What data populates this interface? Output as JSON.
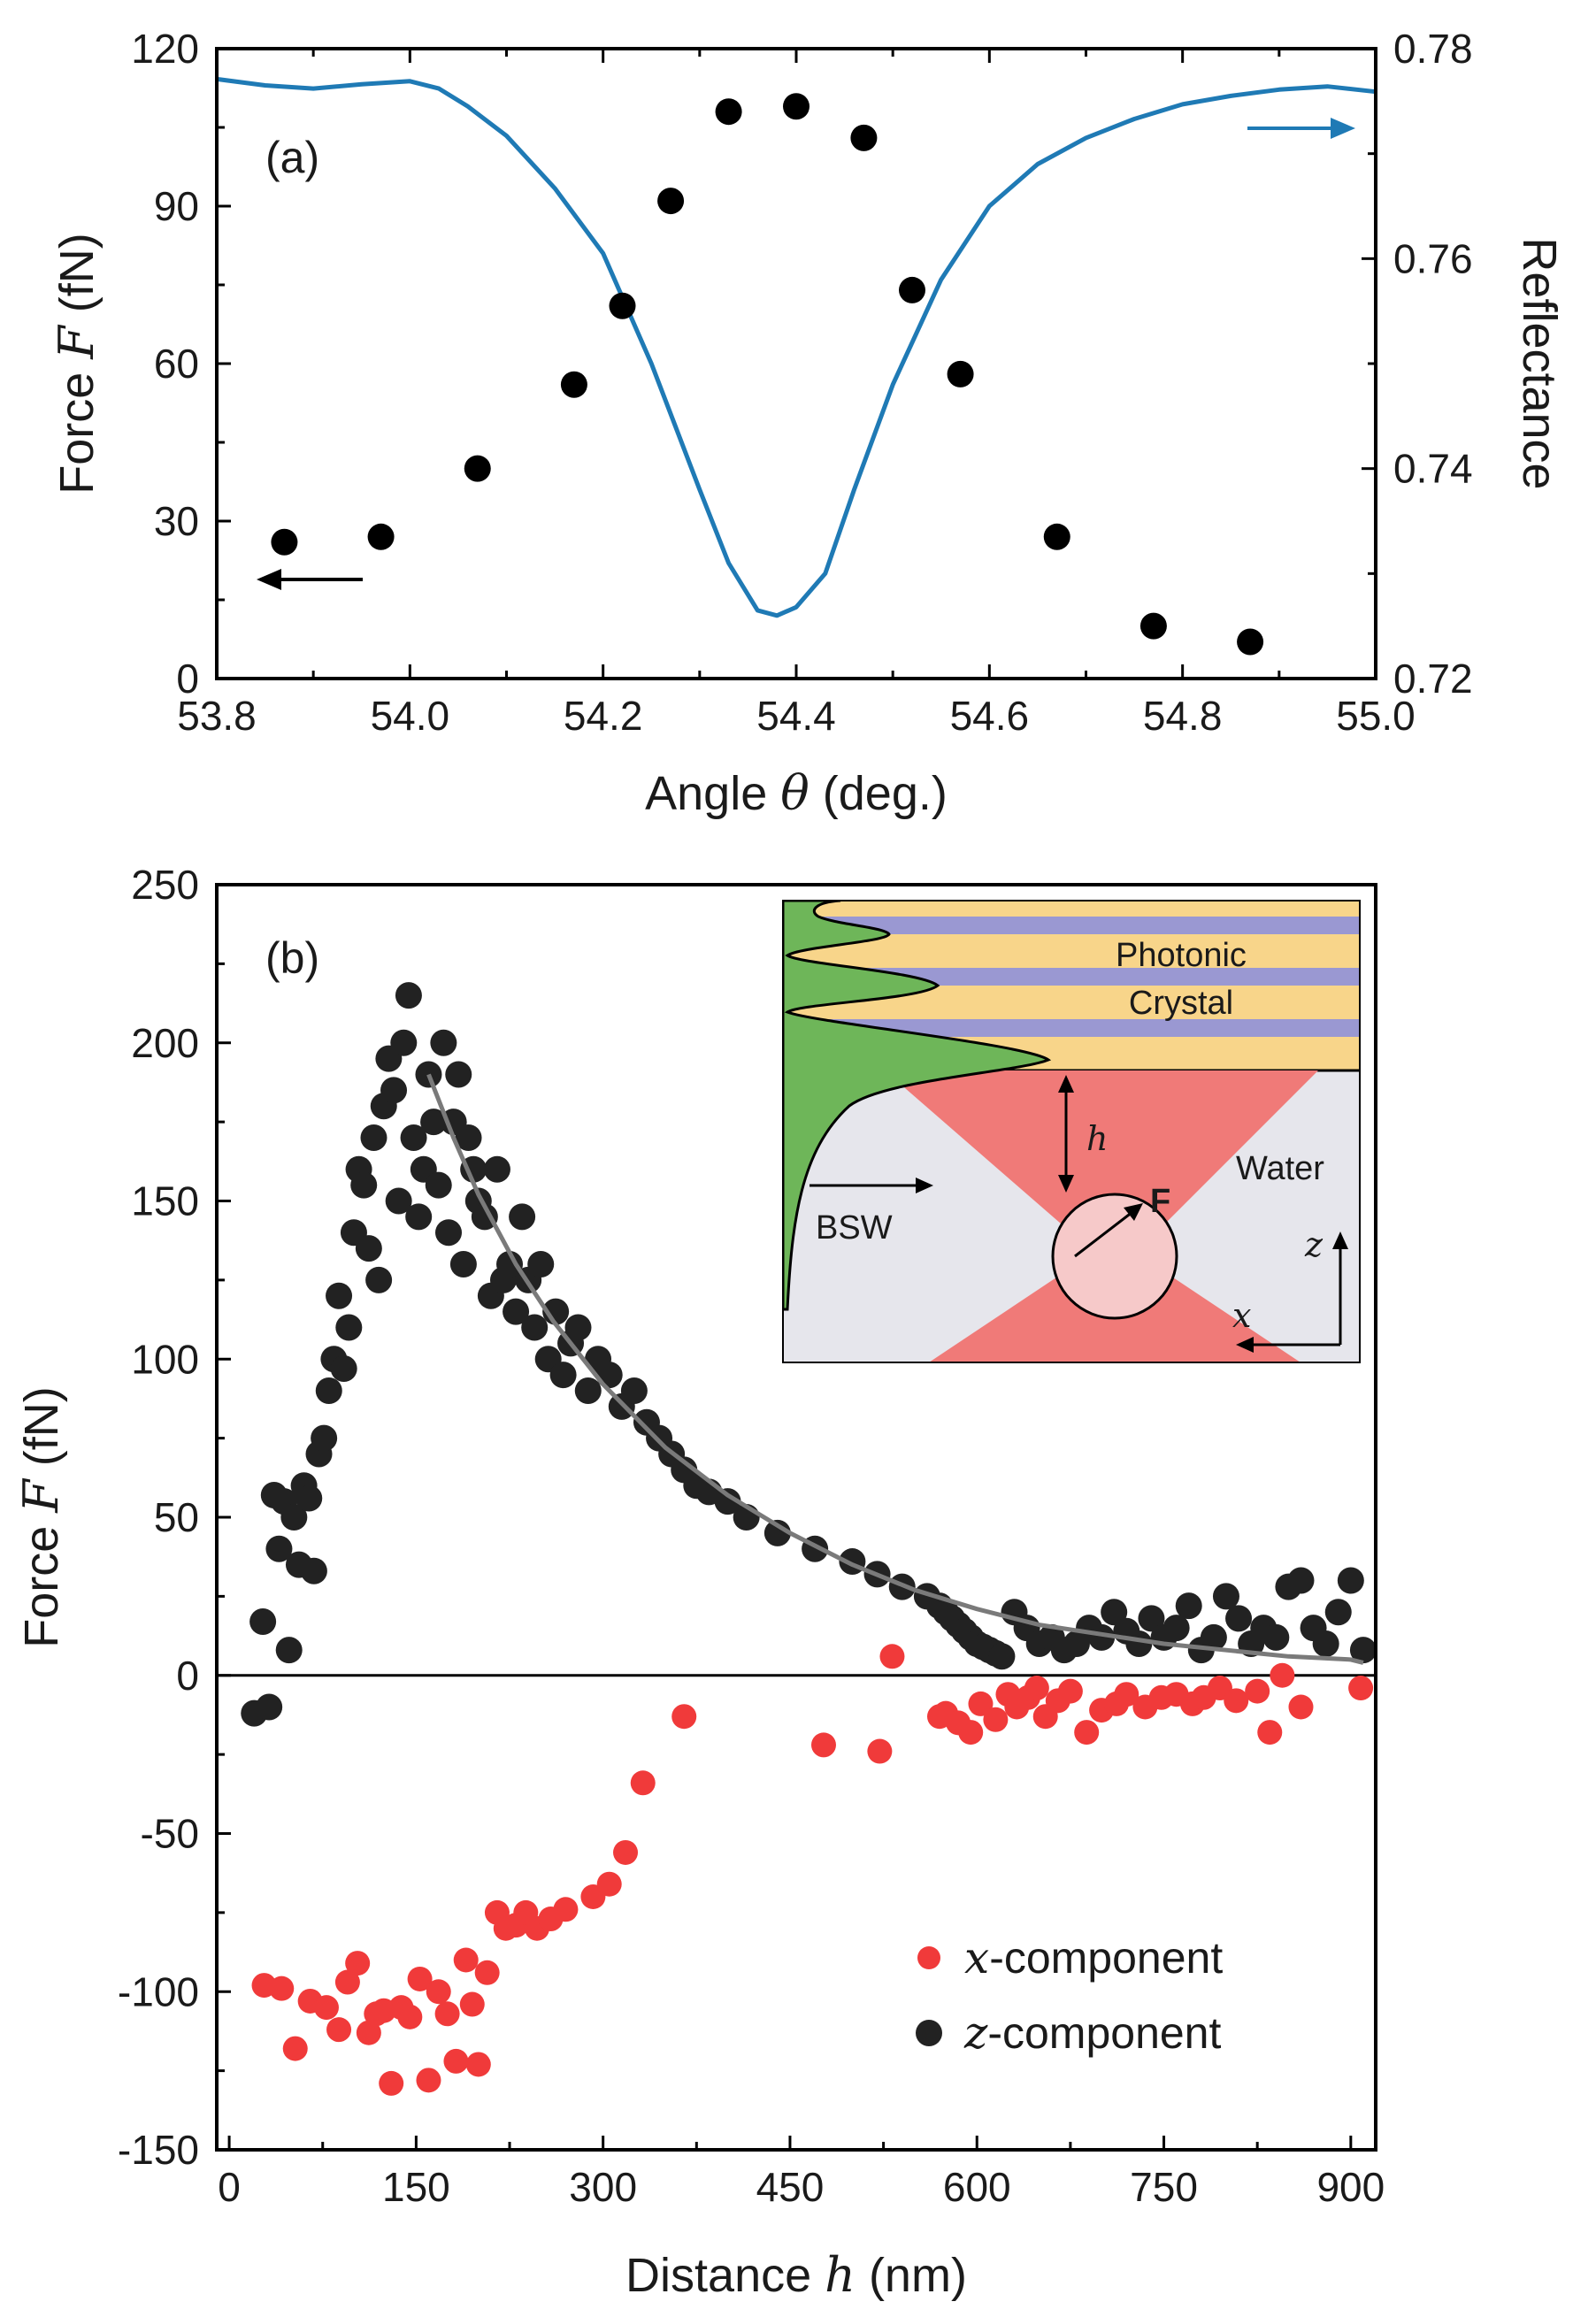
{
  "chart_data": [
    {
      "panel": "(a)",
      "type": "scatter+line",
      "xlabel_pre": "Angle",
      "xlabel_sym": "θ",
      "xlabel_post": "(deg.)",
      "ylabel_pre": "Force",
      "ylabel_sym": "F",
      "ylabel_post": "(fN)",
      "y2label": "Reflectance",
      "xlim": [
        53.8,
        55.0
      ],
      "ylim": [
        0,
        120
      ],
      "y2lim": [
        0.72,
        0.78
      ],
      "xticks": [
        "53.8",
        "54.0",
        "54.2",
        "54.4",
        "54.6",
        "54.8",
        "55.0"
      ],
      "xtick_values": [
        53.8,
        54.0,
        54.2,
        54.4,
        54.6,
        54.8,
        55.0
      ],
      "yticks": [
        "0",
        "30",
        "60",
        "90",
        "120"
      ],
      "ytick_values": [
        0,
        30,
        60,
        90,
        120
      ],
      "y2ticks": [
        "0.72",
        "0.74",
        "0.76",
        "0.78"
      ],
      "y2tick_values": [
        0.72,
        0.74,
        0.76,
        0.78
      ],
      "series": [
        {
          "name": "Force",
          "type": "scatter",
          "color": "#000000",
          "x": [
            53.87,
            53.97,
            54.07,
            54.17,
            54.22,
            54.27,
            54.33,
            54.4,
            54.47,
            54.52,
            54.57,
            54.67,
            54.77,
            54.87
          ],
          "y": [
            26,
            27,
            40,
            56,
            71,
            91,
            108,
            109,
            103,
            74,
            58,
            27,
            10,
            7
          ]
        },
        {
          "name": "Reflectance",
          "type": "line",
          "axis": "right",
          "color": "#1f7ab5",
          "x": [
            53.8,
            53.85,
            53.9,
            53.95,
            54.0,
            54.03,
            54.06,
            54.1,
            54.15,
            54.2,
            54.25,
            54.3,
            54.33,
            54.36,
            54.38,
            54.4,
            54.43,
            54.46,
            54.5,
            54.55,
            54.6,
            54.65,
            54.7,
            54.75,
            54.8,
            54.85,
            54.9,
            54.95,
            55.0
          ],
          "y": [
            0.7771,
            0.7765,
            0.7762,
            0.7766,
            0.7769,
            0.7762,
            0.7745,
            0.7717,
            0.7667,
            0.7605,
            0.75,
            0.738,
            0.731,
            0.7265,
            0.726,
            0.7268,
            0.73,
            0.738,
            0.748,
            0.758,
            0.765,
            0.769,
            0.7715,
            0.7733,
            0.7747,
            0.7755,
            0.7761,
            0.7764,
            0.7759
          ]
        }
      ],
      "arrows": [
        "left arrow pointing to force axis",
        "right arrow pointing to reflectance axis"
      ]
    },
    {
      "panel": "(b)",
      "type": "scatter+line",
      "xlabel_pre": "Distance",
      "xlabel_sym": "h",
      "xlabel_post": "(nm)",
      "ylabel_pre": "Force",
      "ylabel_sym": "F",
      "ylabel_post": "(fN)",
      "xlim": [
        -10,
        920
      ],
      "ylim": [
        -150,
        250
      ],
      "xticks": [
        "0",
        "150",
        "300",
        "450",
        "600",
        "750",
        "900"
      ],
      "xtick_values": [
        0,
        150,
        300,
        450,
        600,
        750,
        900
      ],
      "yticks": [
        "-150",
        "-100",
        "-50",
        "0",
        "50",
        "100",
        "150",
        "200",
        "250"
      ],
      "ytick_values": [
        -150,
        -100,
        -50,
        0,
        50,
        100,
        150,
        200,
        250
      ],
      "legend": [
        {
          "sym": "x",
          "label": "-component",
          "color": "#f03a3a"
        },
        {
          "sym": "z",
          "label": "-component",
          "color": "#222222"
        }
      ],
      "series": [
        {
          "name": "x-component",
          "color": "#f03a3a",
          "x": [
            28,
            42,
            53,
            65,
            78,
            88,
            95,
            103,
            112,
            118,
            124,
            130,
            138,
            145,
            153,
            160,
            168,
            175,
            182,
            190,
            195,
            200,
            207,
            215,
            222,
            230,
            238,
            247,
            258,
            270,
            292,
            305,
            318,
            332,
            365,
            477,
            522,
            532,
            570,
            575,
            585,
            595,
            603,
            615,
            625,
            632,
            641,
            648,
            655,
            665,
            675,
            688,
            700,
            712,
            720,
            735,
            748,
            760,
            773,
            782,
            795,
            808,
            825,
            835,
            845,
            860,
            908
          ],
          "y": [
            -98,
            -99,
            -118,
            -103,
            -105,
            -112,
            -97,
            -91,
            -113,
            -107,
            -106,
            -129,
            -105,
            -108,
            -96,
            -128,
            -100,
            -107,
            -122,
            -90,
            -104,
            -123,
            -94,
            -75,
            -80,
            -79,
            -75,
            -80,
            -77,
            -74,
            -70,
            -66,
            -56,
            -34,
            -13,
            -22,
            -24,
            6,
            -13,
            -12,
            -15,
            -18,
            -9,
            -14,
            -6,
            -10,
            -7,
            -4,
            -13,
            -8,
            -5,
            -18,
            -11,
            -9,
            -6,
            -10,
            -7,
            -6,
            -9,
            -7,
            -4,
            -8,
            -5,
            -18,
            0,
            -10,
            -4
          ],
          "y_scale_note": "values in fN"
        },
        {
          "name": "z-component",
          "color": "#222222",
          "x": [
            20,
            27,
            32,
            36,
            40,
            44,
            48,
            52,
            56,
            60,
            64,
            68,
            72,
            76,
            80,
            84,
            88,
            92,
            96,
            100,
            104,
            108,
            112,
            116,
            120,
            124,
            128,
            132,
            136,
            140,
            144,
            148,
            152,
            156,
            160,
            164,
            168,
            172,
            176,
            180,
            184,
            188,
            192,
            196,
            200,
            205,
            210,
            215,
            220,
            225,
            230,
            235,
            240,
            245,
            250,
            256,
            262,
            268,
            274,
            280,
            288,
            296,
            305,
            315,
            325,
            335,
            345,
            355,
            365,
            375,
            385,
            400,
            415,
            440,
            470,
            500,
            520,
            540,
            560,
            570,
            575,
            580,
            585,
            590,
            595,
            600,
            605,
            610,
            615,
            620,
            630,
            640,
            650,
            660,
            670,
            680,
            690,
            700,
            710,
            720,
            730,
            740,
            750,
            760,
            770,
            780,
            790,
            800,
            810,
            820,
            830,
            840,
            850,
            860,
            870,
            880,
            890,
            900,
            910
          ],
          "y": [
            -12,
            17,
            -10,
            57,
            40,
            55,
            8,
            50,
            35,
            60,
            56,
            33,
            70,
            75,
            90,
            100,
            120,
            97,
            110,
            140,
            160,
            155,
            135,
            170,
            125,
            180,
            195,
            185,
            150,
            200,
            215,
            170,
            145,
            160,
            190,
            175,
            155,
            200,
            140,
            175,
            190,
            130,
            170,
            160,
            150,
            145,
            120,
            160,
            125,
            130,
            115,
            145,
            125,
            110,
            130,
            100,
            115,
            95,
            105,
            110,
            90,
            100,
            95,
            85,
            90,
            80,
            75,
            70,
            65,
            60,
            58,
            55,
            50,
            45,
            40,
            36,
            32,
            28,
            25,
            22,
            20,
            18,
            16,
            14,
            12,
            10,
            9,
            8,
            7,
            6,
            20,
            15,
            10,
            12,
            8,
            10,
            15,
            12,
            20,
            14,
            10,
            18,
            12,
            15,
            22,
            8,
            12,
            25,
            18,
            10,
            15,
            12,
            28,
            30,
            15,
            10,
            20,
            30,
            8
          ]
        },
        {
          "name": "fit",
          "color": "#7a7a7a",
          "x": [
            160,
            180,
            200,
            230,
            260,
            300,
            350,
            400,
            450,
            500,
            550,
            600,
            650,
            700,
            750,
            800,
            850,
            900,
            910
          ],
          "y": [
            190,
            170,
            152,
            130,
            112,
            92,
            72,
            57,
            45,
            35,
            27,
            21,
            16,
            13,
            10,
            8,
            6,
            5,
            4
          ]
        }
      ],
      "inset": {
        "label_photonic": "Photonic",
        "label_crystal": "Crystal",
        "label_h": "h",
        "label_water": "Water",
        "label_F": "F",
        "label_bsw": "BSW",
        "label_z": "z",
        "label_x": "x"
      }
    }
  ]
}
